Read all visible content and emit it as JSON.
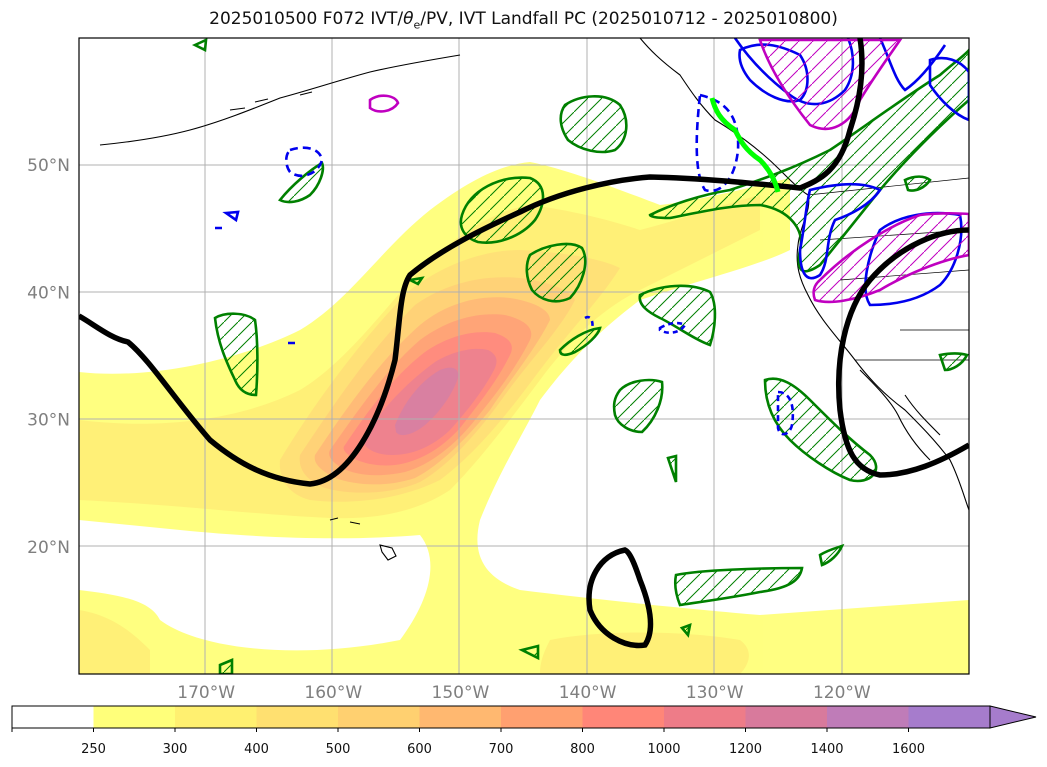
{
  "title": {
    "prefix": "2025010500 F072 IVT/",
    "theta": "θ",
    "sub": "e",
    "suffix": "/PV, IVT Landfall PC (2025010712 - 2025010800)"
  },
  "chart_data": {
    "type": "map-contourf",
    "variable": "IVT",
    "map_extent": {
      "lon": [
        -180,
        -110
      ],
      "lat": [
        10,
        60
      ]
    },
    "grid": true,
    "lat_ticks": [
      "20°N",
      "30°N",
      "40°N",
      "50°N"
    ],
    "lon_ticks": [
      "170°W",
      "160°W",
      "150°W",
      "140°W",
      "130°W",
      "120°W"
    ],
    "colorbar": {
      "levels": [
        250,
        300,
        400,
        500,
        600,
        700,
        800,
        1000,
        1200,
        1400,
        1600
      ],
      "colors": [
        "#ffffff",
        "#ffff7a",
        "#fff070",
        "#ffe070",
        "#ffd070",
        "#ffb870",
        "#ffa070",
        "#ff8678",
        "#ee7c88",
        "#d87a9c",
        "#bf7cb8",
        "#a67ccc"
      ],
      "extend": "max"
    },
    "overlays": [
      {
        "name": "black-contour",
        "color": "#000000"
      },
      {
        "name": "green-hatched-contour",
        "color": "#008000"
      },
      {
        "name": "blue-contour",
        "color": "#0000ff"
      },
      {
        "name": "magenta-contour",
        "color": "#c000c0"
      },
      {
        "name": "landfall-segment",
        "color": "#00ff00"
      }
    ]
  }
}
